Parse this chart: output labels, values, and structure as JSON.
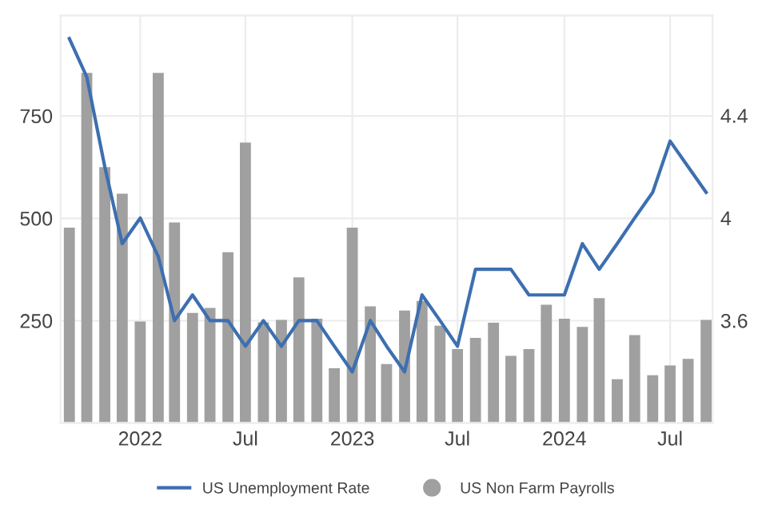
{
  "chart_data": {
    "type": "bar",
    "x": [
      "2021-09",
      "2021-10",
      "2021-11",
      "2021-12",
      "2022-01",
      "2022-02",
      "2022-03",
      "2022-04",
      "2022-05",
      "2022-06",
      "2022-07",
      "2022-08",
      "2022-09",
      "2022-10",
      "2022-11",
      "2022-12",
      "2023-01",
      "2023-02",
      "2023-03",
      "2023-04",
      "2023-05",
      "2023-06",
      "2023-07",
      "2023-08",
      "2023-09",
      "2023-10",
      "2023-11",
      "2023-12",
      "2024-01",
      "2024-02",
      "2024-03",
      "2024-04",
      "2024-05",
      "2024-06",
      "2024-07",
      "2024-08",
      "2024-09"
    ],
    "series": [
      {
        "name": "US Unemployment Rate",
        "type": "line",
        "axis": "y2",
        "color": "#3d6fb0",
        "values": [
          4.7,
          4.55,
          4.2,
          3.9,
          4.0,
          3.85,
          3.6,
          3.7,
          3.6,
          3.6,
          3.5,
          3.6,
          3.5,
          3.6,
          3.6,
          3.5,
          3.4,
          3.6,
          3.5,
          3.4,
          3.7,
          3.6,
          3.5,
          3.8,
          3.8,
          3.8,
          3.7,
          3.7,
          3.7,
          3.9,
          3.8,
          3.9,
          4.0,
          4.1,
          4.3,
          4.2,
          4.1
        ]
      },
      {
        "name": "US Non Farm Payrolls",
        "color": "#a0a0a0",
        "values": [
          477,
          855,
          625,
          560,
          248,
          855,
          490,
          269,
          281,
          417,
          685,
          246,
          252,
          356,
          255,
          134,
          477,
          285,
          144,
          275,
          298,
          238,
          181,
          208,
          245,
          164,
          181,
          289,
          255,
          235,
          305,
          107,
          215,
          117,
          141,
          157,
          252
        ]
      }
    ],
    "xlim": [
      "2021-08-17",
      "2024-09-12"
    ],
    "xticks": [
      {
        "value": "2022-01",
        "label": "2022"
      },
      {
        "value": "2022-07",
        "label": "Jul"
      },
      {
        "value": "2023-01",
        "label": "2023"
      },
      {
        "value": "2023-07",
        "label": "Jul"
      },
      {
        "value": "2024-01",
        "label": "2024"
      },
      {
        "value": "2024-07",
        "label": "Jul"
      }
    ],
    "ylim": [
      0,
      995
    ],
    "yticks": [
      250,
      500,
      750
    ],
    "y2lim": [
      3.2,
      4.79
    ],
    "y2ticks": [
      3.6,
      4,
      4.4
    ],
    "grid": true,
    "legend": "bottom",
    "line_style": "solid",
    "marker": "none"
  }
}
